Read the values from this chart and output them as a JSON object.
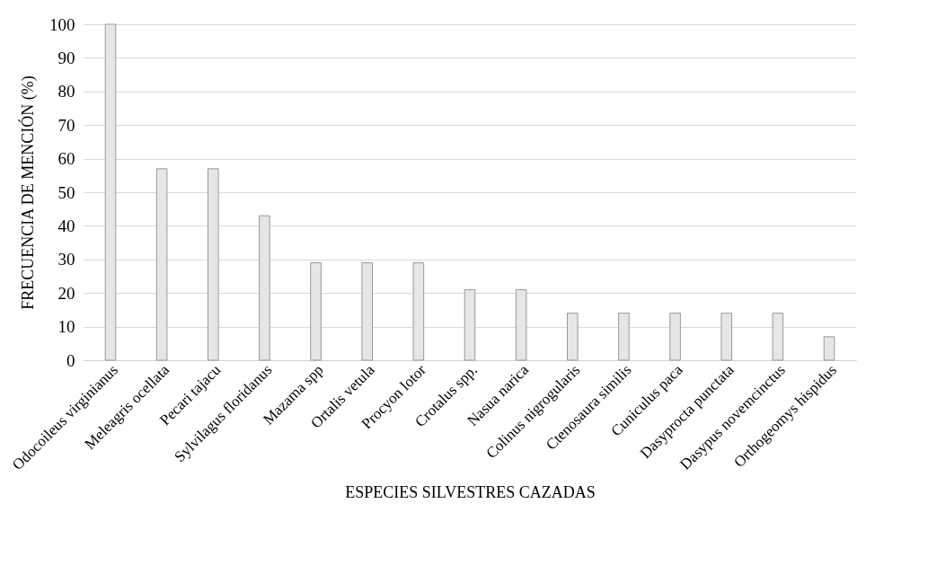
{
  "chart_data": {
    "type": "bar",
    "xlabel": "ESPECIES SILVESTRES CAZADAS",
    "ylabel": "FRECUENCIA DE MENCIÓN (%)",
    "categories": [
      "Odocoileus virginianus",
      "Meleagris ocellata",
      "Pecari tajacu",
      "Sylvilagus floridanus",
      "Mazama spp",
      "Ortalis vetula",
      "Procyon lotor",
      "Crotalus  spp.",
      "Nasua narica",
      "Colinus nigrogularis",
      "Ctenosaura similis",
      "Cuniculus paca",
      "Dasyprocta punctata",
      "Dasypus novemcinctus",
      "Orthogeomys hispidus"
    ],
    "values": [
      100,
      57,
      57,
      43,
      29,
      29,
      29,
      21,
      21,
      14,
      14,
      14,
      14,
      14,
      7
    ],
    "color": "#e6e6e6",
    "ylim": [
      0,
      100
    ],
    "yticks": [
      0,
      10,
      20,
      30,
      40,
      50,
      60,
      70,
      80,
      90,
      100
    ],
    "grid": "y"
  }
}
